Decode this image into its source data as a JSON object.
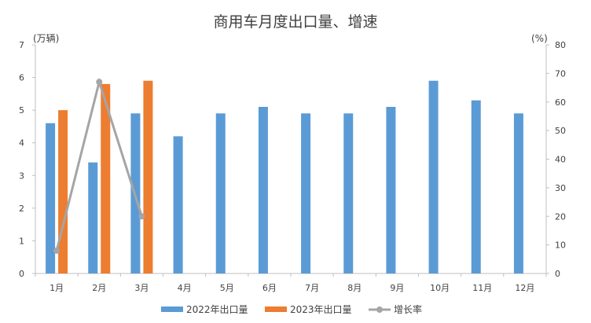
{
  "chart_data": {
    "type": "bar",
    "title": "商用车月度出口量、增速",
    "y_left_unit": "(万辆)",
    "y_right_unit": "(%)",
    "categories": [
      "1月",
      "2月",
      "3月",
      "4月",
      "5月",
      "6月",
      "7月",
      "8月",
      "9月",
      "10月",
      "11月",
      "12月"
    ],
    "ylim_left": [
      0,
      7
    ],
    "ylim_right": [
      0,
      80
    ],
    "y_left_ticks": [
      0,
      1,
      2,
      3,
      4,
      5,
      6,
      7
    ],
    "y_right_ticks": [
      0,
      10,
      20,
      30,
      40,
      50,
      60,
      70,
      80
    ],
    "grid": false,
    "legend_position": "bottom",
    "series": [
      {
        "name": "2022年出口量",
        "type": "bar",
        "axis": "left",
        "color": "#5B9BD5",
        "values": [
          4.6,
          3.4,
          4.9,
          4.2,
          4.9,
          5.1,
          4.9,
          4.9,
          5.1,
          5.9,
          5.3,
          4.9
        ]
      },
      {
        "name": "2023年出口量",
        "type": "bar",
        "axis": "left",
        "color": "#ED7D31",
        "values": [
          5.0,
          5.8,
          5.9,
          null,
          null,
          null,
          null,
          null,
          null,
          null,
          null,
          null
        ]
      },
      {
        "name": "增长率",
        "type": "line",
        "axis": "right",
        "color": "#A5A5A5",
        "values": [
          8,
          67,
          20,
          null,
          null,
          null,
          null,
          null,
          null,
          null,
          null,
          null
        ]
      }
    ]
  }
}
